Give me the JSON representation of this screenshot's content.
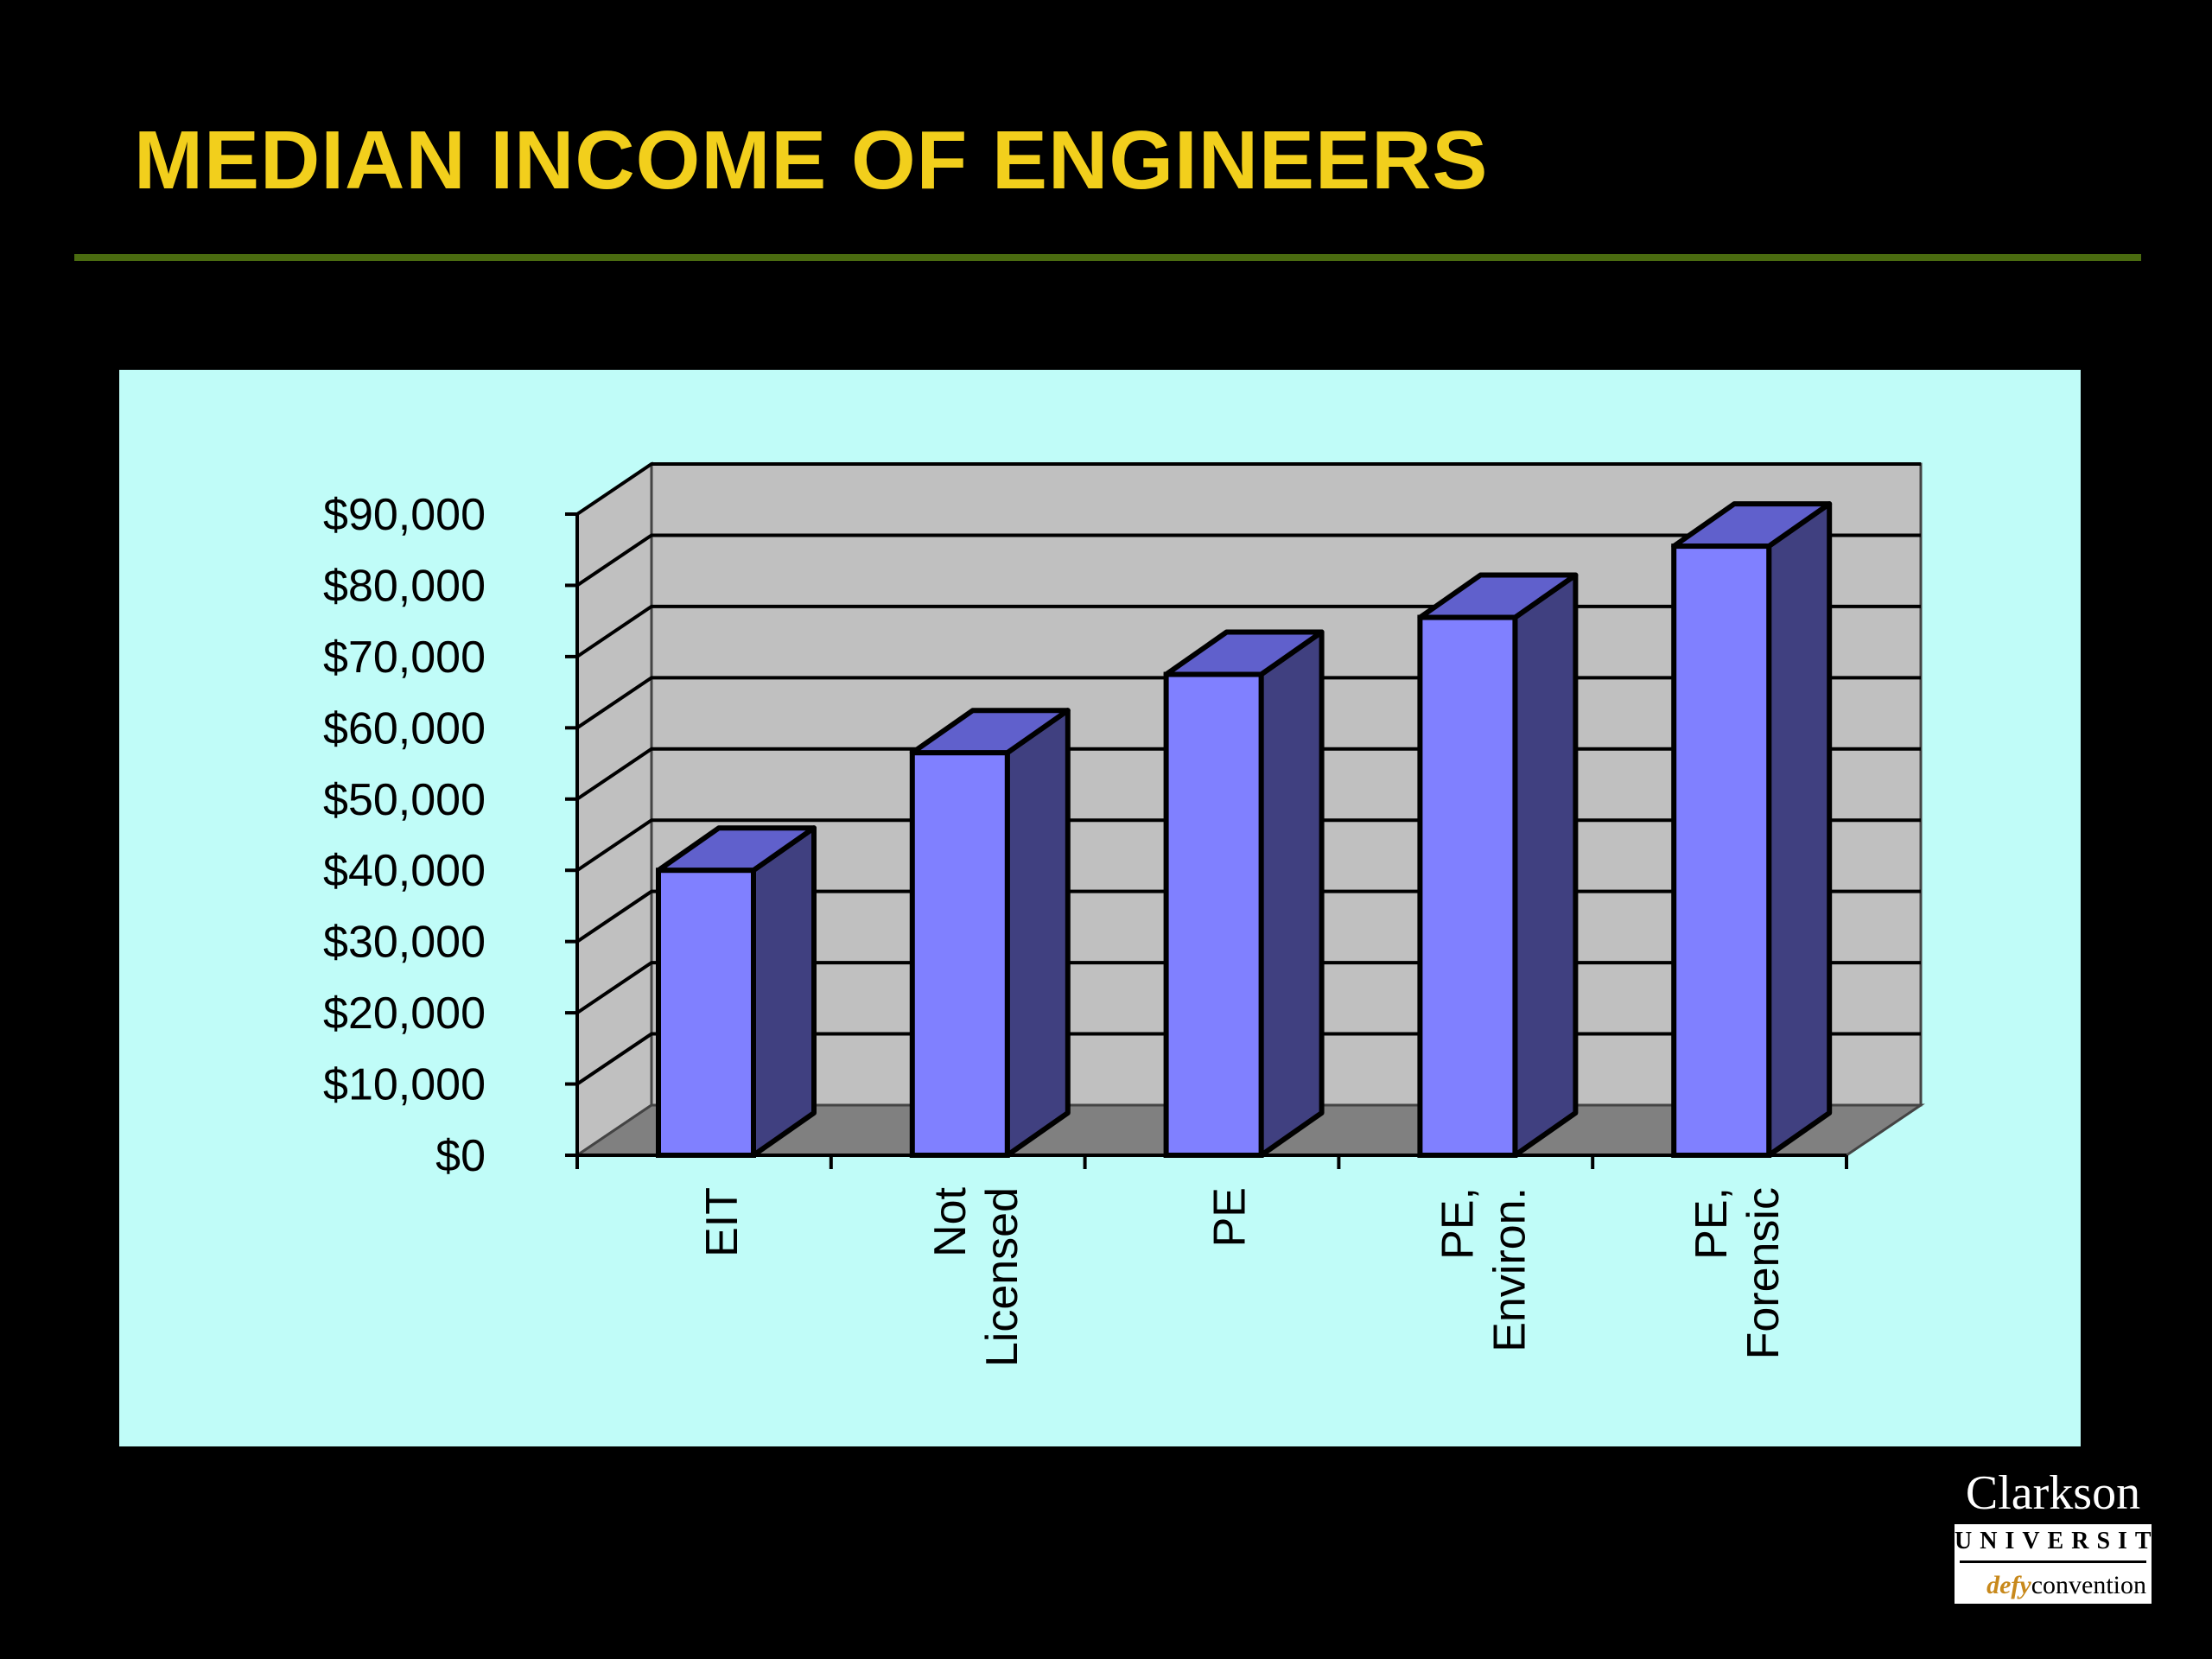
{
  "slide": {
    "title": "MEDIAN INCOME OF ENGINEERS"
  },
  "colors": {
    "background": "#000000",
    "title": "#f2cf1c",
    "rule": "#4a6b10",
    "panel": "#c0fcf8",
    "wall": "#c0c0c0",
    "floor": "#808080",
    "bar_front": "#8080ff",
    "bar_top": "#6060cc",
    "bar_side": "#404080"
  },
  "chart_data": {
    "type": "bar",
    "style": "3d",
    "categories": [
      [
        "EIT"
      ],
      [
        "Not",
        "Licensed"
      ],
      [
        "PE"
      ],
      [
        "PE,",
        "Environ."
      ],
      [
        "PE,",
        "Forensic"
      ]
    ],
    "values": [
      40000,
      56500,
      67500,
      75500,
      85500
    ],
    "y_ticks": [
      "$0",
      "$10,000",
      "$20,000",
      "$30,000",
      "$40,000",
      "$50,000",
      "$60,000",
      "$70,000",
      "$80,000",
      "$90,000"
    ],
    "ylim": [
      0,
      90000
    ],
    "grid": true,
    "legend": "none"
  },
  "logo": {
    "name": "Clarkson",
    "university": "UNIVERSITY",
    "tag_prefix": "defy",
    "tag_suffix": "convention"
  }
}
